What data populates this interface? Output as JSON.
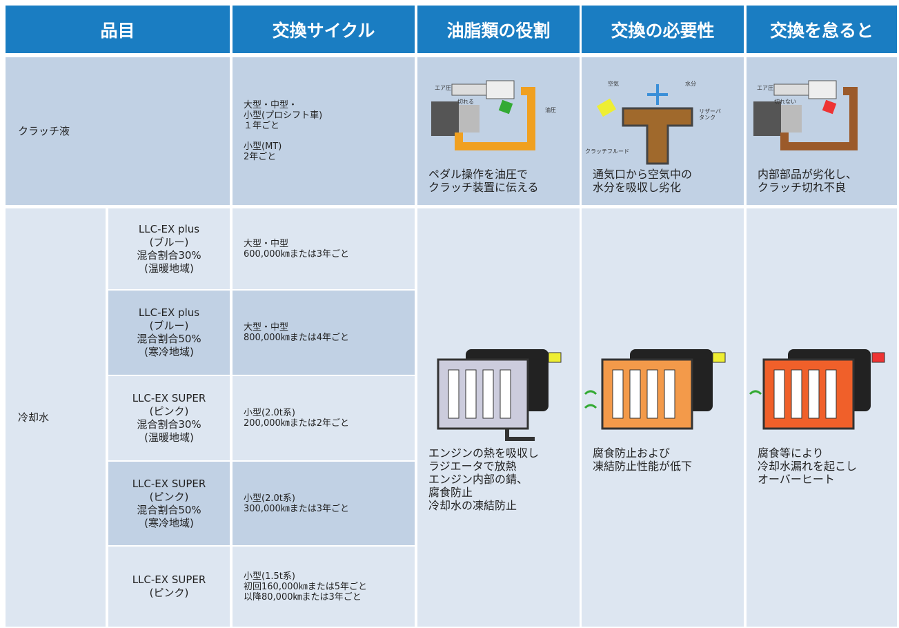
{
  "header": [
    "品目",
    "交換サイクル",
    "油脂類の役割",
    "交換の必要性",
    "交換を怠ると"
  ],
  "clutch": {
    "item": "クラッチ液",
    "cycle": "大型・中型・\n小型(プロシフト車)\n１年ごと\n\n小型(MT)\n2年ごと",
    "role": "ペダル操作を油圧で\nクラッチ装置に伝える",
    "need": "通気口から空気中の\n水分を吸収し劣化",
    "neglect": "内部部品が劣化し、\nクラッチ切れ不良",
    "role_labels": [
      "エア圧",
      "切れる",
      "油圧"
    ],
    "need_labels": [
      "空気",
      "水分",
      "リザーバ\nタンク",
      "クラッチフルード"
    ],
    "neglect_labels": [
      "エア圧",
      "切れない"
    ]
  },
  "coolant": {
    "item": "冷却水",
    "rows": [
      {
        "product": "LLC-EX plus\n(ブルー)\n混合割合30%\n(温暖地域)",
        "cycle": "大型・中型\n600,000㎞または3年ごと"
      },
      {
        "product": "LLC-EX plus\n(ブルー)\n混合割合50%\n(寒冷地域)",
        "cycle": "大型・中型\n800,000㎞または4年ごと"
      },
      {
        "product": "LLC-EX SUPER\n(ピンク)\n混合割合30%\n(温暖地域)",
        "cycle": "小型(2.0t系)\n200,000㎞または2年ごと"
      },
      {
        "product": "LLC-EX SUPER\n(ピンク)\n混合割合50%\n(寒冷地域)",
        "cycle": "小型(2.0t系)\n300,000㎞または3年ごと"
      },
      {
        "product": "LLC-EX SUPER\n(ピンク)",
        "cycle": "小型(1.5t系)\n初回160,000㎞または5年ごと\n以降80,000㎞または3年ごと"
      }
    ],
    "role": "エンジンの熱を吸収し\nラジエータで放熱\nエンジン内部の錆、\n腐食防止\n冷却水の凍結防止",
    "need": "腐食防止および\n凍結防止性能が低下",
    "neglect": "腐食等により\n冷却水漏れを起こし\nオーバーヒート"
  }
}
